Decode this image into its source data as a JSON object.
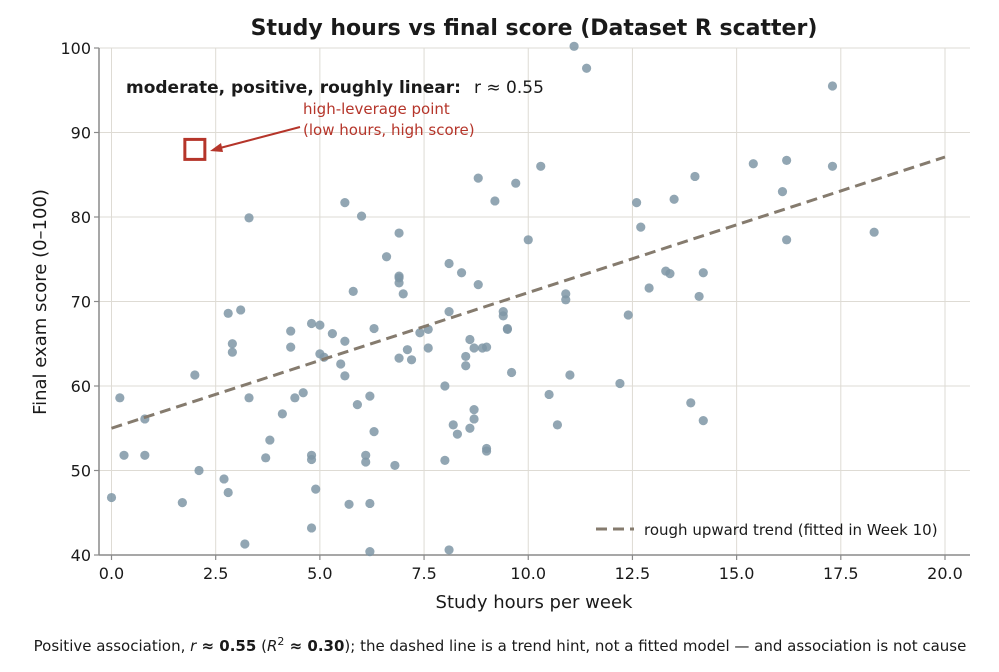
{
  "chart_data": {
    "type": "scatter",
    "title": "Study hours vs final score (Dataset R scatter)",
    "xlabel": "Study hours per week",
    "ylabel": "Final exam score (0–100)",
    "xlim": [
      -0.3,
      20.6
    ],
    "ylim": [
      40,
      100
    ],
    "x_ticks": [
      0.0,
      2.5,
      5.0,
      7.5,
      10.0,
      12.5,
      15.0,
      17.5,
      20.0
    ],
    "x_tick_labels": [
      "0.0",
      "2.5",
      "5.0",
      "7.5",
      "10.0",
      "12.5",
      "15.0",
      "17.5",
      "20.0"
    ],
    "y_ticks": [
      40,
      50,
      60,
      70,
      80,
      90,
      100
    ],
    "y_tick_labels": [
      "40",
      "50",
      "60",
      "70",
      "80",
      "90",
      "100"
    ],
    "grid": true,
    "point_color": "#7f97a6",
    "trend_color": "#857b6e",
    "accent_color": "#b5352a",
    "series": [
      {
        "points": [
          [
            0.0,
            46.8
          ],
          [
            0.2,
            58.6
          ],
          [
            0.3,
            51.8
          ],
          [
            0.8,
            56.1
          ],
          [
            0.8,
            51.8
          ],
          [
            1.7,
            46.2
          ],
          [
            2.0,
            61.3
          ],
          [
            2.1,
            50.0
          ],
          [
            2.7,
            49.0
          ],
          [
            2.8,
            68.6
          ],
          [
            2.8,
            47.4
          ],
          [
            2.9,
            64.0
          ],
          [
            2.9,
            65.0
          ],
          [
            3.1,
            69.0
          ],
          [
            3.2,
            41.3
          ],
          [
            3.3,
            58.6
          ],
          [
            3.3,
            79.9
          ],
          [
            3.7,
            51.5
          ],
          [
            3.8,
            53.6
          ],
          [
            4.1,
            56.7
          ],
          [
            4.3,
            64.6
          ],
          [
            4.3,
            66.5
          ],
          [
            4.4,
            58.6
          ],
          [
            4.6,
            59.2
          ],
          [
            4.8,
            67.4
          ],
          [
            4.8,
            51.8
          ],
          [
            4.8,
            51.3
          ],
          [
            4.8,
            43.2
          ],
          [
            4.9,
            47.8
          ],
          [
            5.0,
            67.2
          ],
          [
            5.0,
            63.8
          ],
          [
            5.1,
            63.4
          ],
          [
            5.3,
            66.2
          ],
          [
            5.5,
            62.6
          ],
          [
            5.6,
            65.3
          ],
          [
            5.6,
            61.2
          ],
          [
            5.6,
            81.7
          ],
          [
            5.7,
            46.0
          ],
          [
            5.8,
            71.2
          ],
          [
            5.9,
            57.8
          ],
          [
            6.0,
            80.1
          ],
          [
            6.1,
            51.8
          ],
          [
            6.1,
            51.0
          ],
          [
            6.2,
            58.8
          ],
          [
            6.2,
            46.1
          ],
          [
            6.2,
            40.4
          ],
          [
            6.3,
            66.8
          ],
          [
            6.3,
            54.6
          ],
          [
            6.6,
            75.3
          ],
          [
            6.8,
            50.6
          ],
          [
            6.9,
            78.1
          ],
          [
            6.9,
            73.0
          ],
          [
            6.9,
            72.8
          ],
          [
            6.9,
            72.2
          ],
          [
            6.9,
            63.3
          ],
          [
            7.0,
            70.9
          ],
          [
            7.1,
            64.3
          ],
          [
            7.2,
            63.1
          ],
          [
            7.4,
            66.3
          ],
          [
            7.6,
            64.5
          ],
          [
            7.6,
            66.7
          ],
          [
            8.0,
            51.2
          ],
          [
            8.0,
            60.0
          ],
          [
            8.1,
            74.5
          ],
          [
            8.1,
            68.8
          ],
          [
            8.1,
            40.6
          ],
          [
            8.2,
            55.4
          ],
          [
            8.3,
            54.3
          ],
          [
            8.4,
            73.4
          ],
          [
            8.5,
            62.4
          ],
          [
            8.5,
            63.5
          ],
          [
            8.6,
            65.5
          ],
          [
            8.6,
            55.0
          ],
          [
            8.7,
            57.2
          ],
          [
            8.7,
            56.1
          ],
          [
            8.7,
            64.5
          ],
          [
            8.8,
            84.6
          ],
          [
            8.8,
            72.0
          ],
          [
            8.9,
            64.5
          ],
          [
            9.0,
            64.6
          ],
          [
            9.0,
            52.6
          ],
          [
            9.0,
            52.3
          ],
          [
            9.2,
            81.9
          ],
          [
            9.4,
            68.3
          ],
          [
            9.4,
            68.8
          ],
          [
            9.5,
            66.8
          ],
          [
            9.5,
            66.7
          ],
          [
            9.6,
            61.6
          ],
          [
            9.7,
            84.0
          ],
          [
            10.0,
            77.3
          ],
          [
            10.3,
            86.0
          ],
          [
            10.5,
            59.0
          ],
          [
            10.7,
            55.4
          ],
          [
            10.9,
            70.2
          ],
          [
            10.9,
            70.9
          ],
          [
            11.0,
            61.3
          ],
          [
            11.1,
            100.2
          ],
          [
            11.4,
            97.6
          ],
          [
            12.2,
            60.3
          ],
          [
            12.4,
            68.4
          ],
          [
            12.6,
            81.7
          ],
          [
            12.7,
            78.8
          ],
          [
            12.9,
            71.6
          ],
          [
            13.3,
            73.6
          ],
          [
            13.4,
            73.3
          ],
          [
            13.5,
            82.1
          ],
          [
            13.9,
            58.0
          ],
          [
            14.0,
            84.8
          ],
          [
            14.1,
            70.6
          ],
          [
            14.2,
            55.9
          ],
          [
            14.2,
            73.4
          ],
          [
            15.4,
            86.3
          ],
          [
            16.1,
            83.0
          ],
          [
            16.2,
            86.7
          ],
          [
            16.2,
            77.3
          ],
          [
            17.3,
            95.5
          ],
          [
            17.3,
            86.0
          ],
          [
            18.3,
            78.2
          ]
        ]
      }
    ],
    "highlight_point": [
      2.0,
      88.0
    ],
    "trend_line": {
      "x": [
        0.0,
        20.0
      ],
      "y": [
        55.0,
        87.1
      ],
      "label": "rough upward trend (fitted in Week 10)"
    },
    "annotations": {
      "corr_bold": "moderate, positive, roughly linear:",
      "corr_r": "r ≈ 0.55",
      "leverage_line1": "high-leverage point",
      "leverage_line2": "(low hours, high score)"
    },
    "legend_position": "bottom-right",
    "caption": {
      "part1": "Positive association, ",
      "r_sym": "r",
      "r_val": " ≈ 0.55",
      "part2": " (",
      "r2_sym": "R",
      "r2_sup": "2",
      "r2_val": " ≈ 0.30",
      "part3": "); the dashed line is a trend hint, not a fitted model — and association is not cause"
    }
  }
}
